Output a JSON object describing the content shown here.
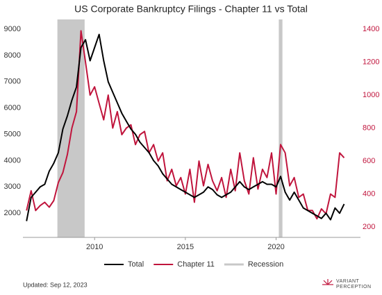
{
  "chart_data": {
    "type": "line",
    "title": "US Corporate Bankruptcy Filings - Chapter 11 vs Total",
    "x": [
      2006.25,
      2006.5,
      2006.75,
      2007,
      2007.25,
      2007.5,
      2007.75,
      2008,
      2008.25,
      2008.5,
      2008.75,
      2009,
      2009.25,
      2009.5,
      2009.75,
      2010,
      2010.25,
      2010.5,
      2010.75,
      2011,
      2011.25,
      2011.5,
      2011.75,
      2012,
      2012.25,
      2012.5,
      2012.75,
      2013,
      2013.25,
      2013.5,
      2013.75,
      2014,
      2014.25,
      2014.5,
      2014.75,
      2015,
      2015.25,
      2015.5,
      2015.75,
      2016,
      2016.25,
      2016.5,
      2016.75,
      2017,
      2017.25,
      2017.5,
      2017.75,
      2018,
      2018.25,
      2018.5,
      2018.75,
      2019,
      2019.25,
      2019.5,
      2019.75,
      2020,
      2020.25,
      2020.5,
      2020.75,
      2021,
      2021.25,
      2021.5,
      2021.75,
      2022,
      2022.25,
      2022.5,
      2022.75,
      2023,
      2023.25,
      2023.5,
      2023.75
    ],
    "series": [
      {
        "name": "Total",
        "color": "#000000",
        "values": [
          1700,
          2600,
          2800,
          3000,
          3100,
          3600,
          3900,
          4300,
          5200,
          5700,
          6300,
          6800,
          8300,
          8600,
          7800,
          8300,
          8800,
          7800,
          7000,
          6600,
          6200,
          5800,
          5500,
          5200,
          5000,
          4700,
          4500,
          4300,
          4000,
          3800,
          3500,
          3300,
          3100,
          3000,
          2900,
          2800,
          2700,
          2600,
          2700,
          2800,
          3000,
          2900,
          2700,
          2600,
          2700,
          2800,
          3000,
          3200,
          3000,
          2900,
          3000,
          3100,
          3200,
          3100,
          3100,
          3000,
          3400,
          2800,
          2500,
          2800,
          2500,
          2200,
          2100,
          2000,
          1900,
          1800,
          2000,
          1750,
          2200,
          2000,
          2350
        ]
      },
      {
        "name": "Chapter 11",
        "color": "#c0143c",
        "axis": "y2",
        "values": [
          300,
          420,
          300,
          330,
          350,
          320,
          360,
          470,
          530,
          640,
          800,
          900,
          1390,
          1200,
          1000,
          1050,
          950,
          850,
          1000,
          800,
          900,
          760,
          800,
          820,
          700,
          760,
          780,
          650,
          700,
          600,
          650,
          480,
          550,
          450,
          500,
          400,
          550,
          350,
          600,
          450,
          580,
          480,
          420,
          500,
          380,
          550,
          420,
          650,
          480,
          400,
          620,
          430,
          550,
          500,
          650,
          400,
          700,
          650,
          450,
          500,
          380,
          400,
          300,
          300,
          250,
          310,
          280,
          400,
          380,
          650,
          620
        ]
      }
    ],
    "recession_label": "Recession",
    "recession_color": "#c8c8c8",
    "recessions": [
      {
        "start": 2007.95,
        "end": 2009.45
      },
      {
        "start": 2020.15,
        "end": 2020.35
      }
    ],
    "xlim": [
      2006.05,
      2024.65
    ],
    "xticks": [
      2010,
      2015,
      2020
    ],
    "ylim": [
      1080,
      9370
    ],
    "yticks": [
      2000,
      3000,
      4000,
      5000,
      6000,
      7000,
      8000,
      9000
    ],
    "y2lim": [
      137,
      1459
    ],
    "y2ticks": [
      200,
      400,
      600,
      800,
      1000,
      1200,
      1400
    ],
    "footnote": "Updated: Sep 12, 2023"
  },
  "logo": {
    "line1": "VARIANT",
    "line2": "PERCEPTION"
  }
}
